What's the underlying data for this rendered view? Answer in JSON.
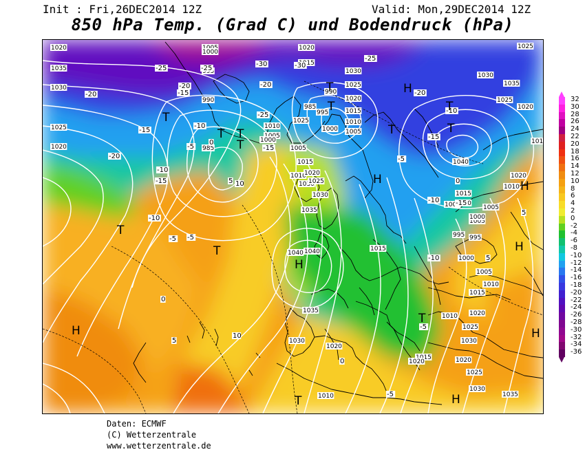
{
  "header": {
    "init": "Init : Fri,26DEC2014 12Z",
    "valid": "Valid: Mon,29DEC2014 12Z",
    "title": "850 hPa Temp. (Grad C) und Bodendruck (hPa)"
  },
  "legend": {
    "values": [
      "32",
      "30",
      "28",
      "26",
      "24",
      "22",
      "20",
      "18",
      "16",
      "14",
      "12",
      "10",
      "8",
      "6",
      "4",
      "2",
      "0",
      "-2",
      "-4",
      "-6",
      "-8",
      "-10",
      "-12",
      "-14",
      "-16",
      "-18",
      "-20",
      "-22",
      "-24",
      "-26",
      "-28",
      "-30",
      "-32",
      "-34",
      "-36"
    ],
    "colors": [
      "#ff40ff",
      "#ff20e0",
      "#e010c0",
      "#c000a0",
      "#a00080",
      "#d02040",
      "#e02020",
      "#f03010",
      "#f05010",
      "#f07010",
      "#f08c10",
      "#f5a010",
      "#f5b418",
      "#f8c820",
      "#f8dc28",
      "#f0ec30",
      "#b8e020",
      "#60d020",
      "#20c030",
      "#10c070",
      "#10c8a8",
      "#10c8e0",
      "#20a0f0",
      "#2878f0",
      "#3050e8",
      "#3838e0",
      "#4020d0",
      "#5010c0",
      "#6008b0",
      "#7008a0",
      "#800890",
      "#900890",
      "#a00888",
      "#800870",
      "#600060"
    ]
  },
  "map": {
    "centres": [
      {
        "label": "H"
      },
      {
        "label": "H"
      },
      {
        "label": "H"
      },
      {
        "label": "H"
      },
      {
        "label": "H"
      },
      {
        "label": "H"
      },
      {
        "label": "H"
      },
      {
        "label": "H"
      },
      {
        "label": "T"
      },
      {
        "label": "T"
      },
      {
        "label": "T"
      },
      {
        "label": "T"
      },
      {
        "label": "T"
      },
      {
        "label": "T"
      },
      {
        "label": "T"
      },
      {
        "label": "T"
      },
      {
        "label": "T"
      },
      {
        "label": "T"
      },
      {
        "label": "T"
      },
      {
        "label": "T"
      },
      {
        "label": "T"
      }
    ],
    "pressure_labels": [
      "1040",
      "1035",
      "1030",
      "1025",
      "1020",
      "1005",
      "1000",
      "995",
      "990",
      "985",
      "1010",
      "1005",
      "1000",
      "1015",
      "1020",
      "1025",
      "1030",
      "1035",
      "1040",
      "1030",
      "1025",
      "1020",
      "1015",
      "1010",
      "1005",
      "1000",
      "995",
      "990",
      "985",
      "1015",
      "1010",
      "1005",
      "1020",
      "1025",
      "1030",
      "1040",
      "1035",
      "1030",
      "1020",
      "1015",
      "1010",
      "1005",
      "1000",
      "995",
      "1010",
      "1015",
      "1020",
      "1025",
      "1030",
      "1035",
      "1040",
      "1020",
      "1025",
      "1020",
      "1015",
      "1010",
      "1005",
      "1000",
      "995",
      "1000",
      "1005",
      "1010",
      "1015",
      "1020",
      "1025",
      "1030",
      "1020",
      "1025",
      "1030",
      "1035",
      "1010",
      "1015",
      "1020"
    ],
    "temp_labels": [
      "-25",
      "-20",
      "-15",
      "-10",
      "-5",
      "0",
      "5",
      "10",
      "-30",
      "-25",
      "-20",
      "-15",
      "-10",
      "-5",
      "0",
      "5",
      "10",
      "-20",
      "-15",
      "-10",
      "-5",
      "-25",
      "-20",
      "-15",
      "-30",
      "-25",
      "-20",
      "-15",
      "-10",
      "-5",
      "0",
      "5",
      "-10",
      "-5",
      "-15",
      "-10",
      "5",
      "0",
      "-5"
    ]
  },
  "credit": {
    "line1": "Daten: ECMWF",
    "line2": "(C) Wetterzentrale",
    "line3": "www.wetterzentrale.de"
  }
}
